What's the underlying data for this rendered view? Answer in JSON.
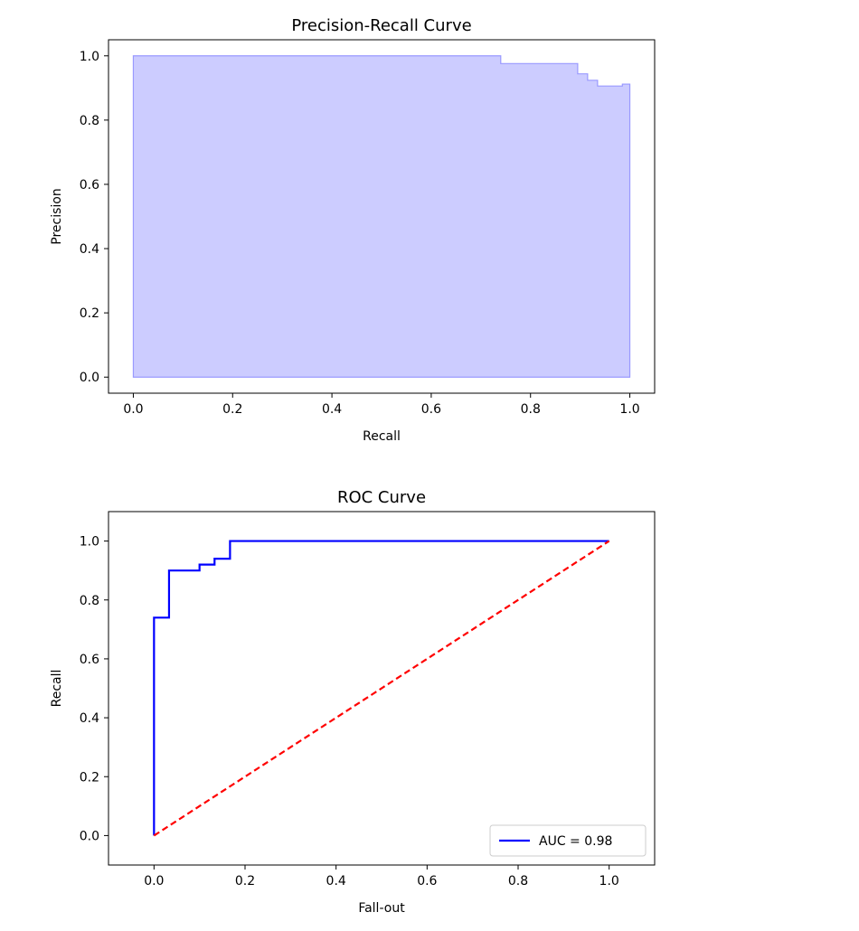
{
  "chart_data": [
    {
      "type": "area",
      "title": "Precision-Recall Curve",
      "xlabel": "Recall",
      "ylabel": "Precision",
      "xlim": [
        -0.05,
        1.05
      ],
      "ylim": [
        -0.05,
        1.05
      ],
      "xticks": [
        "0.0",
        "0.2",
        "0.4",
        "0.6",
        "0.8",
        "1.0"
      ],
      "yticks": [
        "0.0",
        "0.2",
        "0.4",
        "0.6",
        "0.8",
        "1.0"
      ],
      "step": "post",
      "fill_color": "#ccccff",
      "edge_color": "#9999ff",
      "x": [
        0.0,
        0.74,
        0.74,
        0.895,
        0.895,
        0.915,
        0.915,
        0.935,
        0.935,
        0.96,
        0.96,
        0.985,
        0.985,
        1.0
      ],
      "y": [
        1.0,
        1.0,
        0.976,
        0.976,
        0.944,
        0.944,
        0.924,
        0.924,
        0.906,
        0.906,
        0.906,
        0.906,
        0.912,
        0.912
      ]
    },
    {
      "type": "line",
      "title": "ROC Curve",
      "xlabel": "Fall-out",
      "ylabel": "Recall",
      "xlim": [
        -0.1,
        1.1
      ],
      "ylim": [
        -0.1,
        1.1
      ],
      "xticks": [
        "0.0",
        "0.2",
        "0.4",
        "0.6",
        "0.8",
        "1.0"
      ],
      "yticks": [
        "0.0",
        "0.2",
        "0.4",
        "0.6",
        "0.8",
        "1.0"
      ],
      "legend": "lower-right",
      "series": [
        {
          "name": "AUC = 0.98",
          "color": "#0000ff",
          "style": "solid",
          "x": [
            0.0,
            0.0,
            0.033,
            0.033,
            0.1,
            0.1,
            0.133,
            0.133,
            0.167,
            0.167,
            1.0
          ],
          "y": [
            0.0,
            0.74,
            0.74,
            0.9,
            0.9,
            0.92,
            0.92,
            0.94,
            0.94,
            1.0,
            1.0
          ]
        },
        {
          "color": "#ff0000",
          "style": "dashed",
          "x": [
            0.0,
            1.0
          ],
          "y": [
            0.0,
            1.0
          ]
        }
      ]
    }
  ]
}
